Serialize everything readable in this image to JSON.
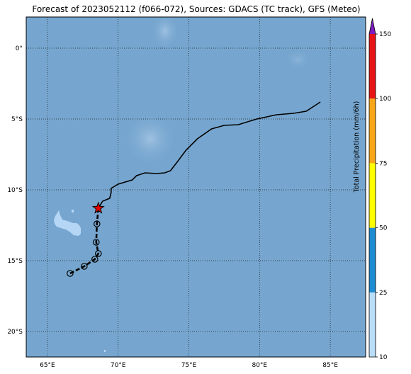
{
  "title": "Forecast of 2023052112 (f066-072), Sources: GDACS (TC track), GFS (Meteo)",
  "map": {
    "lon_range": [
      63.5,
      87.5
    ],
    "lat_range": [
      -21.8,
      2.2
    ],
    "lon_ticks": [
      {
        "value": 65,
        "label": "65°E"
      },
      {
        "value": 70,
        "label": "70°E"
      },
      {
        "value": 75,
        "label": "75°E"
      },
      {
        "value": 80,
        "label": "80°E"
      },
      {
        "value": 85,
        "label": "85°E"
      }
    ],
    "lat_ticks": [
      {
        "value": 0,
        "label": "0°"
      },
      {
        "value": -5,
        "label": "5°S"
      },
      {
        "value": -10,
        "label": "10°S"
      },
      {
        "value": -15,
        "label": "15°S"
      },
      {
        "value": -20,
        "label": "20°S"
      }
    ],
    "grid": "dotted",
    "ocean_color": "#76a6cf",
    "precip_patch_color": "#b6d6f5",
    "current_position": {
      "lon": 68.6,
      "lat": -11.3,
      "marker": "red-star"
    },
    "past_track": [
      {
        "lon": 66.6,
        "lat": -15.9
      },
      {
        "lon": 67.6,
        "lat": -15.4
      },
      {
        "lon": 68.35,
        "lat": -14.9
      },
      {
        "lon": 68.6,
        "lat": -14.5
      },
      {
        "lon": 68.45,
        "lat": -13.7
      },
      {
        "lon": 68.5,
        "lat": -12.4
      }
    ],
    "forecast_swath": [
      {
        "lon": 68.6,
        "lat": -11.3
      },
      {
        "lon": 68.9,
        "lat": -10.8
      },
      {
        "lon": 69.4,
        "lat": -10.6
      },
      {
        "lon": 69.5,
        "lat": -10.2
      },
      {
        "lon": 69.5,
        "lat": -9.9
      },
      {
        "lon": 70.0,
        "lat": -9.6
      },
      {
        "lon": 71.0,
        "lat": -9.3
      },
      {
        "lon": 71.3,
        "lat": -9.0
      },
      {
        "lon": 71.9,
        "lat": -8.8
      },
      {
        "lon": 72.7,
        "lat": -8.85
      },
      {
        "lon": 73.3,
        "lat": -8.8
      },
      {
        "lon": 73.7,
        "lat": -8.65
      },
      {
        "lon": 74.2,
        "lat": -8.0
      },
      {
        "lon": 74.8,
        "lat": -7.2
      },
      {
        "lon": 75.6,
        "lat": -6.4
      },
      {
        "lon": 76.6,
        "lat": -5.7
      },
      {
        "lon": 77.5,
        "lat": -5.45
      },
      {
        "lon": 78.5,
        "lat": -5.4
      },
      {
        "lon": 79.8,
        "lat": -5.0
      },
      {
        "lon": 81.2,
        "lat": -4.7
      },
      {
        "lon": 82.4,
        "lat": -4.6
      },
      {
        "lon": 83.3,
        "lat": -4.45
      },
      {
        "lon": 84.3,
        "lat": -3.8
      }
    ]
  },
  "colorbar": {
    "title": "Total Precipitation (mm/6h)",
    "ticks": [
      "10",
      "25",
      "50",
      "75",
      "100",
      "150"
    ],
    "segments": [
      {
        "from": "10",
        "to": "25",
        "color": "#b9dcf8"
      },
      {
        "from": "25",
        "to": "50",
        "color": "#1e8cd2"
      },
      {
        "from": "50",
        "to": "75",
        "color": "#ffff00"
      },
      {
        "from": "75",
        "to": "100",
        "color": "#f8a618"
      },
      {
        "from": "100",
        "to": "150",
        "color": "#e61414"
      }
    ],
    "extend_color": "#7d1cbf"
  }
}
